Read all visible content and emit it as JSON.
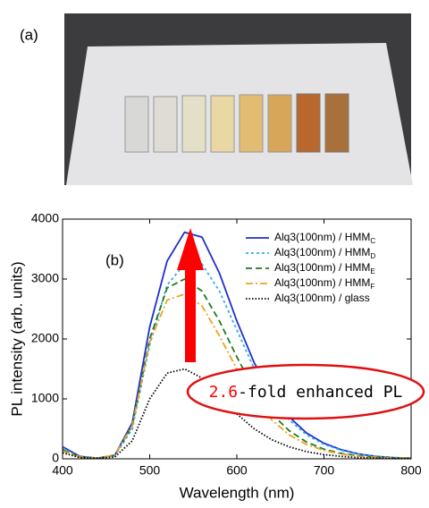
{
  "panel_a_label": "(a)",
  "chart_data": {
    "type": "line",
    "panel_label": "(b)",
    "xlabel": "Wavelength (nm)",
    "ylabel": "PL intensity (arb. units)",
    "xlim": [
      400,
      800
    ],
    "ylim": [
      0,
      4000
    ],
    "xticks": [
      400,
      500,
      600,
      700,
      800
    ],
    "yticks": [
      0,
      1000,
      2000,
      3000,
      4000
    ],
    "legend": "upper right",
    "annotation": {
      "number": "2.6",
      "text": "-fold enhanced PL"
    },
    "x": [
      400,
      420,
      440,
      460,
      480,
      500,
      520,
      540,
      560,
      580,
      600,
      620,
      640,
      660,
      680,
      700,
      720,
      740,
      760,
      780,
      800
    ],
    "series": [
      {
        "name": "Alq3(100nm) / HMM",
        "subscript": "C",
        "color": "#1f2fd0",
        "dash": "solid",
        "values": [
          200,
          40,
          10,
          60,
          600,
          2200,
          3300,
          3780,
          3700,
          3100,
          2300,
          1600,
          1100,
          700,
          430,
          260,
          150,
          80,
          40,
          20,
          10
        ]
      },
      {
        "name": "Alq3(100nm) / HMM",
        "subscript": "D",
        "color": "#2fb0e8",
        "dash": "dot",
        "values": [
          180,
          30,
          10,
          50,
          500,
          1900,
          2900,
          3250,
          3250,
          2800,
          2150,
          1500,
          1000,
          650,
          400,
          240,
          140,
          75,
          40,
          20,
          10
        ]
      },
      {
        "name": "Alq3(100nm) / HMM",
        "subscript": "E",
        "color": "#1e7a1e",
        "dash": "dash",
        "values": [
          150,
          30,
          10,
          60,
          550,
          2000,
          2850,
          3000,
          2800,
          2300,
          1700,
          1150,
          750,
          470,
          280,
          160,
          90,
          50,
          25,
          15,
          10
        ]
      },
      {
        "name": "Alq3(100nm) / HMM",
        "subscript": "F",
        "color": "#f0a020",
        "dash": "dashdot",
        "values": [
          130,
          30,
          10,
          60,
          550,
          1950,
          2650,
          2750,
          2550,
          2050,
          1500,
          1000,
          650,
          400,
          240,
          140,
          80,
          45,
          25,
          12,
          8
        ]
      },
      {
        "name": "Alq3(100nm) / glass",
        "color": "#000000",
        "dash": "dense",
        "values": [
          100,
          20,
          10,
          30,
          300,
          1000,
          1430,
          1500,
          1350,
          1050,
          750,
          500,
          320,
          200,
          120,
          70,
          40,
          20,
          10,
          5,
          3
        ]
      }
    ]
  }
}
